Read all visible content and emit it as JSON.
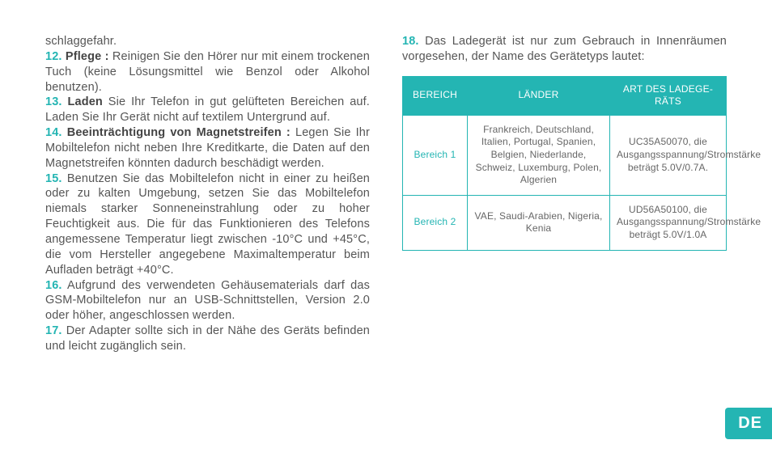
{
  "left": {
    "frag0": "schlaggefahr.",
    "n12": "12.",
    "b12": "Pflege :",
    "t12": " Reinigen Sie den Hörer nur mit einem trockenen Tuch (keine Lösungsmittel wie Benzol oder Alkohol benutzen).",
    "n13": "13.",
    "b13": "Laden",
    "t13": " Sie Ihr Telefon in gut gelüfteten Bereichen auf. Laden Sie Ihr Gerät nicht auf textilem Untergrund auf.",
    "n14": "14.",
    "b14": "Beeinträchtigung von Magnetstreifen :",
    "t14": " Legen Sie Ihr Mobiltelefon nicht neben Ihre Kreditkarte, die Daten auf den Magnetstreifen könnten dadurch beschädigt werden.",
    "n15": "15.",
    "t15": " Benutzen Sie das Mobiltelefon nicht in einer zu heißen oder zu kalten Umgebung, setzen Sie das Mobiltelefon niemals starker Sonneneinstrahlung oder zu hoher Feuchtigkeit aus. Die für das Funktionieren des Telefons angemessene Temperatur liegt zwischen -10°C und +45°C, die vom Hersteller angegebene Maximaltemperatur beim Aufladen beträgt +40°C.",
    "n16": "16.",
    "t16": " Aufgrund des verwendeten Gehäusematerials darf das GSM-Mobiltelefon nur an USB-Schnittstellen, Version 2.0 oder höher, angeschlossen werden.",
    "n17": "17.",
    "t17": " Der Adapter sollte sich in der Nähe des Geräts befinden und leicht zugänglich sein."
  },
  "right": {
    "n18": "18.",
    "t18": " Das Ladegerät ist nur zum Gebrauch in Innenräumen vorgesehen, der Name des Gerätetyps lautet:"
  },
  "table": {
    "h1": "BEREICH",
    "h2": "LÄNDER",
    "h3a": "ART DES LADEGE-",
    "h3b": "RÄTS",
    "rows": [
      {
        "area": "Bereich 1",
        "countries": "Frankreich, Deutschland, Italien, Portugal, Spanien, Belgien, Niederlande, Schweiz, Luxemburg, Polen, Algerien",
        "type": "UC35A50070, die Ausgangsspannung/Stromstärke beträgt 5.0V/0.7A."
      },
      {
        "area": "Bereich 2",
        "countries": "VAE, Saudi-Arabien, Nigeria, Kenia",
        "type": "UD56A50100, die Ausgangsspannung/Stromstärke beträgt 5.0V/1.0A"
      }
    ]
  },
  "lang": "DE"
}
